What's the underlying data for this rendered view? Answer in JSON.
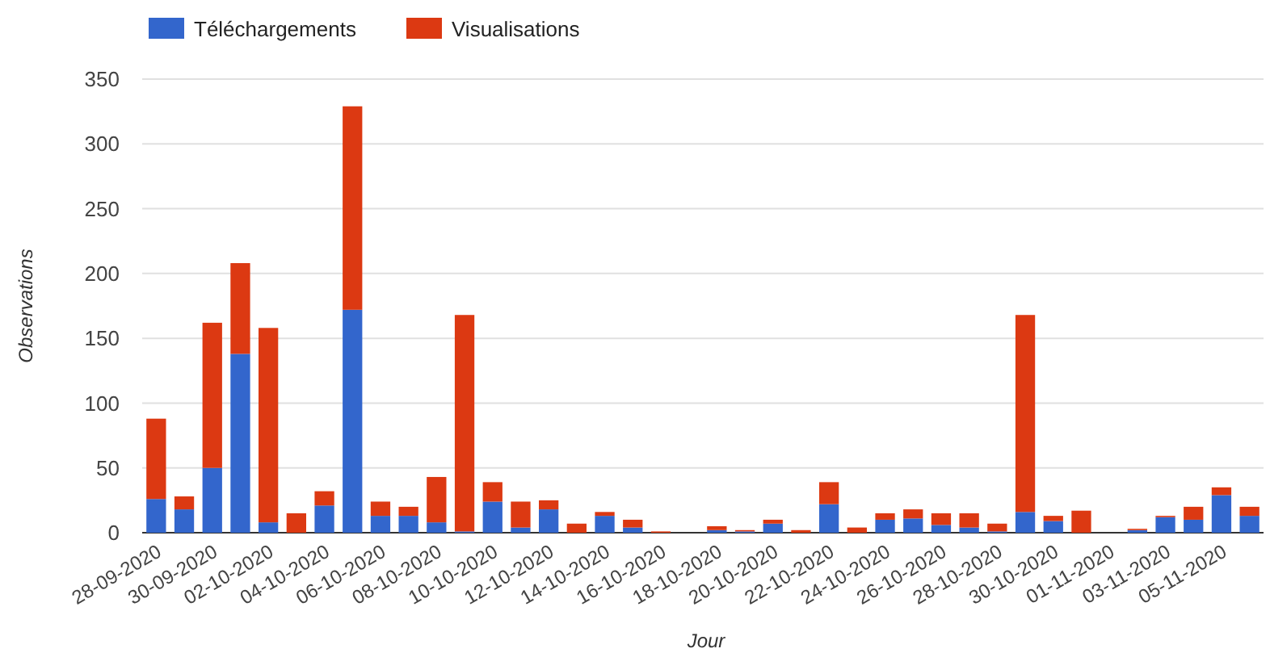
{
  "chart_data": {
    "type": "bar",
    "stacked": true,
    "xlabel": "Jour",
    "ylabel": "Observations",
    "categories": [
      "28-09-2020",
      null,
      "30-09-2020",
      null,
      "02-10-2020",
      null,
      "04-10-2020",
      null,
      "06-10-2020",
      null,
      "08-10-2020",
      null,
      "10-10-2020",
      null,
      "12-10-2020",
      null,
      "14-10-2020",
      null,
      "16-10-2020",
      null,
      "18-10-2020",
      null,
      "20-10-2020",
      null,
      "22-10-2020",
      null,
      "24-10-2020",
      null,
      "26-10-2020",
      null,
      "28-10-2020",
      null,
      "30-10-2020",
      null,
      "01-11-2020",
      null,
      "03-11-2020",
      null,
      "05-11-2020",
      null
    ],
    "series": [
      {
        "name": "Téléchargements",
        "color": "#3366cc",
        "values": [
          26,
          18,
          50,
          138,
          8,
          0,
          21,
          172,
          13,
          13,
          8,
          1,
          24,
          4,
          18,
          0,
          13,
          4,
          0,
          0,
          2,
          1,
          7,
          0,
          22,
          0,
          10,
          11,
          6,
          4,
          1,
          16,
          9,
          0,
          0,
          2,
          12,
          10,
          29,
          13
        ]
      },
      {
        "name": "Visualisations",
        "color": "#dc3912",
        "values": [
          62,
          10,
          112,
          70,
          150,
          15,
          11,
          157,
          11,
          7,
          35,
          167,
          15,
          20,
          7,
          7,
          3,
          6,
          1,
          0,
          3,
          1,
          3,
          2,
          17,
          4,
          5,
          7,
          9,
          11,
          6,
          152,
          4,
          17,
          0,
          1,
          1,
          10,
          6,
          7
        ]
      }
    ],
    "ylim": [
      0,
      350
    ],
    "yticks": [
      0,
      50,
      100,
      150,
      200,
      250,
      300,
      350
    ],
    "grid": "y",
    "legend": "top left"
  }
}
